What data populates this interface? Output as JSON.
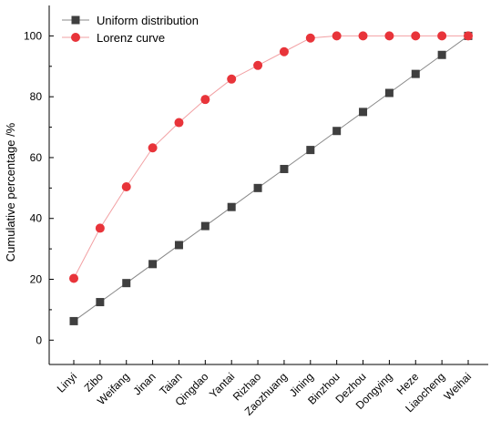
{
  "chart_data": {
    "type": "line",
    "title": "",
    "xlabel": "",
    "ylabel": "Cumulative percentage /%",
    "ylim": [
      -8,
      110
    ],
    "yticks": [
      0,
      20,
      40,
      60,
      80,
      100
    ],
    "grid": false,
    "legend_position": "top-left",
    "categories": [
      "Linyi",
      "Zibo",
      "Weifang",
      "Jinan",
      "Taian",
      "Qingdao",
      "Yantai",
      "Rizhao",
      "Zaozhuang",
      "Jining",
      "Binzhou",
      "Dezhou",
      "Dongying",
      "Heze",
      "Liaocheng",
      "Weihai"
    ],
    "series": [
      {
        "name": "Uniform distribution",
        "marker": "square",
        "color": "#3f3f3f",
        "values": [
          6.25,
          12.5,
          18.75,
          25.0,
          31.25,
          37.5,
          43.75,
          50.0,
          56.25,
          62.5,
          68.75,
          75.0,
          81.25,
          87.5,
          93.75,
          100.0
        ]
      },
      {
        "name": "Lorenz curve",
        "marker": "circle",
        "color": "#e8343a",
        "values": [
          20.3,
          36.8,
          50.4,
          63.2,
          71.5,
          79.1,
          85.8,
          90.3,
          94.8,
          99.3,
          100.0,
          100.0,
          100.0,
          100.0,
          100.0,
          100.0
        ]
      }
    ]
  }
}
